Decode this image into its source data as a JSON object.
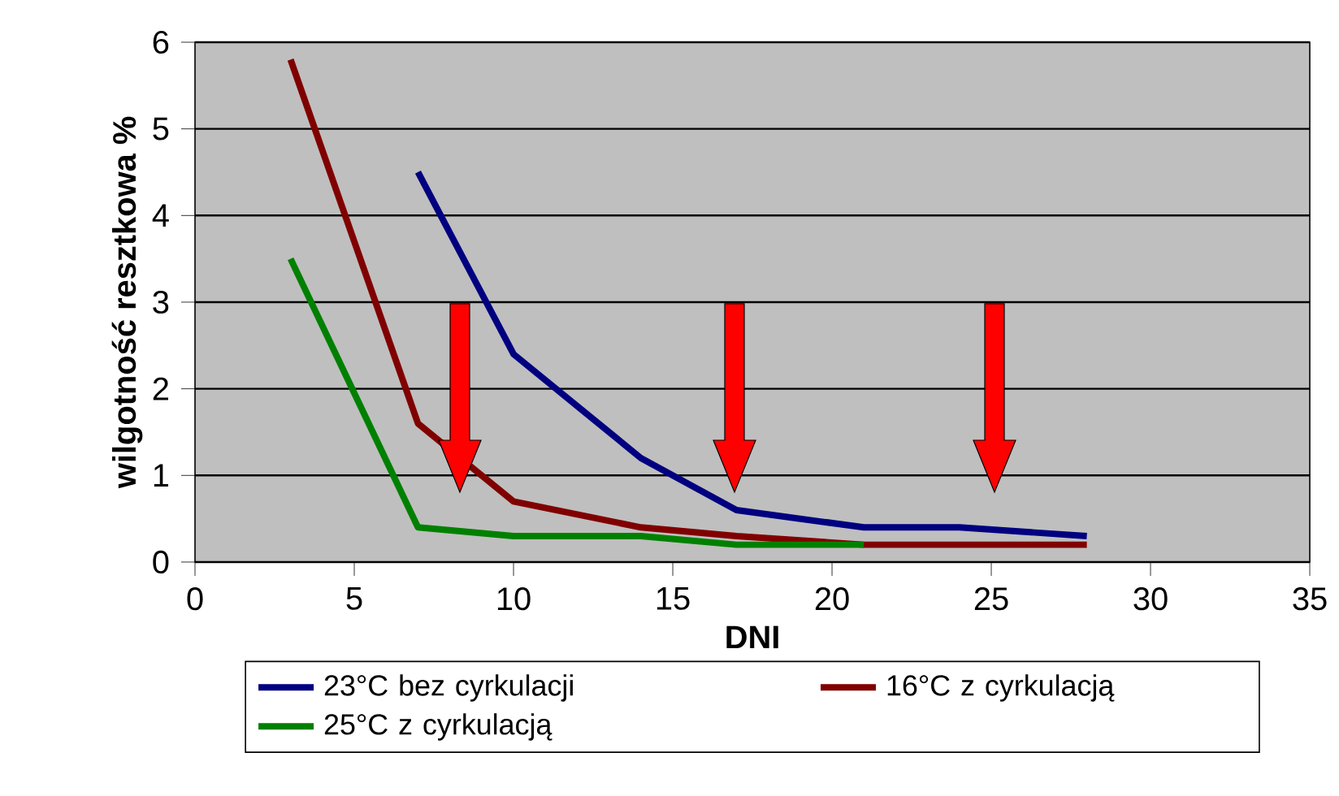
{
  "chart_data": {
    "type": "line",
    "xlabel": "DNI",
    "ylabel": "wilgotność resztkowa %",
    "xlim": [
      0,
      35
    ],
    "ylim": [
      0,
      6
    ],
    "xticks": [
      0,
      5,
      10,
      15,
      20,
      25,
      30,
      35
    ],
    "yticks": [
      0,
      1,
      2,
      3,
      4,
      5,
      6
    ],
    "grid": "y",
    "legend": "bottom",
    "marker": "none",
    "line_style": "solid",
    "series": [
      {
        "name": "23°C bez cyrkulacji",
        "color": "#000080",
        "x": [
          7,
          10,
          14,
          17,
          21,
          24,
          28
        ],
        "values": [
          4.5,
          2.4,
          1.2,
          0.6,
          0.4,
          0.4,
          0.3
        ]
      },
      {
        "name": "16°C z cyrkulacją",
        "color": "#800000",
        "x": [
          3,
          7,
          10,
          14,
          17,
          21,
          24,
          28
        ],
        "values": [
          5.8,
          1.6,
          0.7,
          0.4,
          0.3,
          0.2,
          0.2,
          0.2
        ]
      },
      {
        "name": "25°C z cyrkulacją",
        "color": "#008000",
        "x": [
          3,
          7,
          10,
          14,
          17,
          21
        ],
        "values": [
          3.5,
          0.4,
          0.3,
          0.3,
          0.2,
          0.2
        ]
      }
    ]
  }
}
